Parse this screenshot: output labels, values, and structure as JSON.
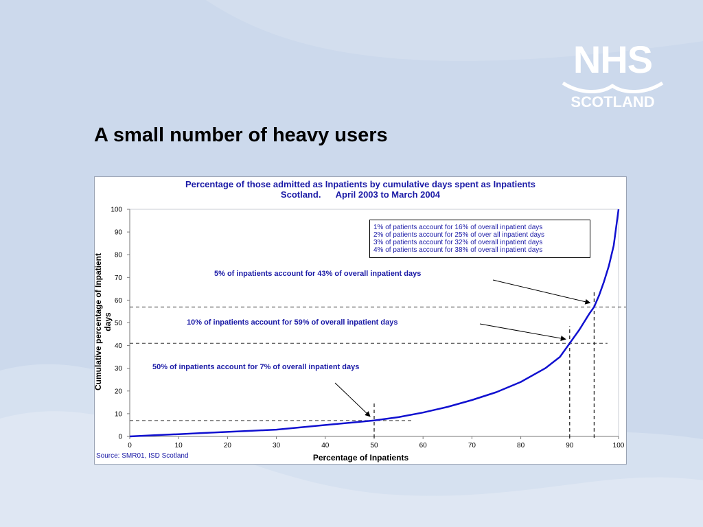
{
  "slide": {
    "title": "A small number of heavy users"
  },
  "logo": {
    "line1": "NHS",
    "line2": "SCOTLAND"
  },
  "colors": {
    "background": "#ccd9ec",
    "curve": "#1010d0",
    "annotation_text": "#1a1aa6"
  },
  "chart_data": {
    "type": "line",
    "title": "Percentage of those admitted as Inpatients by cumulative days spent as Inpatients Scotland.      April 2003 to March 2004",
    "title_line1": "Percentage of those admitted as Inpatients by cumulative days spent as Inpatients",
    "title_line2": "Scotland.      April 2003 to March 2004",
    "xlabel": "Percentage of Inpatients",
    "ylabel": "Cumulative percentage of Inpatient days",
    "xlim": [
      0,
      100
    ],
    "ylim": [
      0,
      100
    ],
    "x_ticks": [
      "0",
      "10",
      "20",
      "30",
      "40",
      "50",
      "60",
      "70",
      "80",
      "90",
      "100"
    ],
    "y_ticks": [
      "0",
      "10",
      "20",
      "30",
      "40",
      "50",
      "60",
      "70",
      "80",
      "90",
      "100"
    ],
    "grid": false,
    "series": [
      {
        "x": [
          0,
          5,
          10,
          15,
          20,
          25,
          30,
          35,
          40,
          45,
          50,
          55,
          60,
          65,
          70,
          75,
          80,
          85,
          88,
          90,
          92,
          94,
          95,
          96,
          97,
          98,
          99,
          100
        ],
        "y": [
          0,
          0.5,
          1,
          1.5,
          2,
          2.5,
          3,
          4,
          5,
          6,
          7,
          8.5,
          10.5,
          13,
          16,
          19.5,
          24,
          30,
          35,
          41,
          47,
          54,
          57,
          62,
          68,
          75,
          84,
          100
        ]
      }
    ],
    "reference_points": [
      {
        "x": 50,
        "y": 7
      },
      {
        "x": 90,
        "y": 41
      },
      {
        "x": 95,
        "y": 57
      }
    ],
    "annotations": [
      "5% of inpatients account for 43% of overall inpatient days",
      "10% of inpatients account for 59% of overall inpatient days",
      "50% of inpatients account for 7% of overall inpatient days"
    ],
    "legend_lines": [
      "1% of patients account for 16% of overall inpatient days",
      "2% of patients account for 25% of over all inpatient days",
      "3% of patients account for 32% of overall inpatient days",
      "4% of patients account for 38% of overall inpatient days"
    ],
    "source": "Source: SMR01, ISD Scotland"
  }
}
